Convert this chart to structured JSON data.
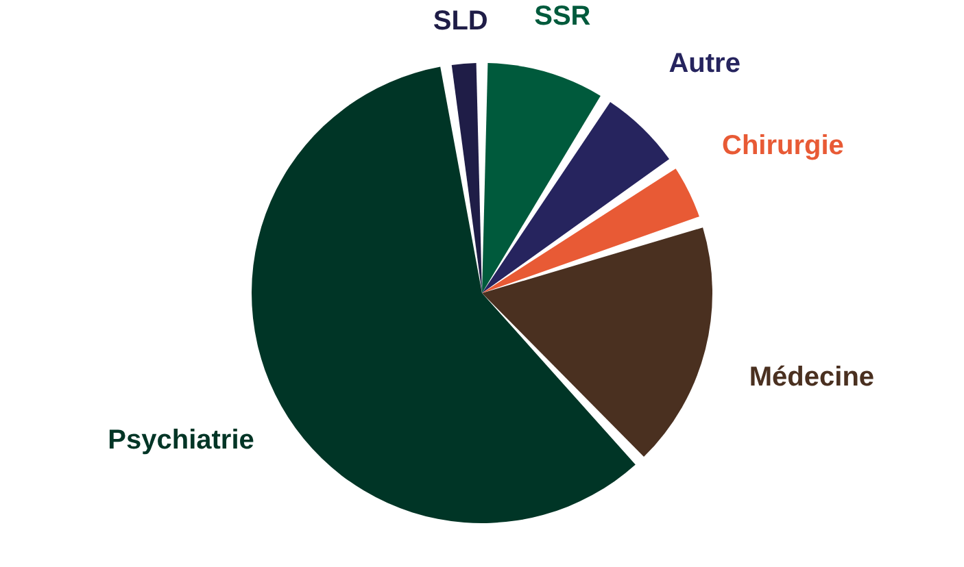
{
  "chart_data": {
    "type": "pie",
    "categories": [
      "SSR",
      "Autre",
      "Chirurgie",
      "Médecine",
      "Psychiatrie",
      "SLD"
    ],
    "values": [
      9,
      6.5,
      4.5,
      18,
      59.5,
      2.5
    ],
    "colors": [
      "#005a3c",
      "#26245e",
      "#e85a35",
      "#4a3020",
      "#003526",
      "#1f1d47"
    ]
  }
}
